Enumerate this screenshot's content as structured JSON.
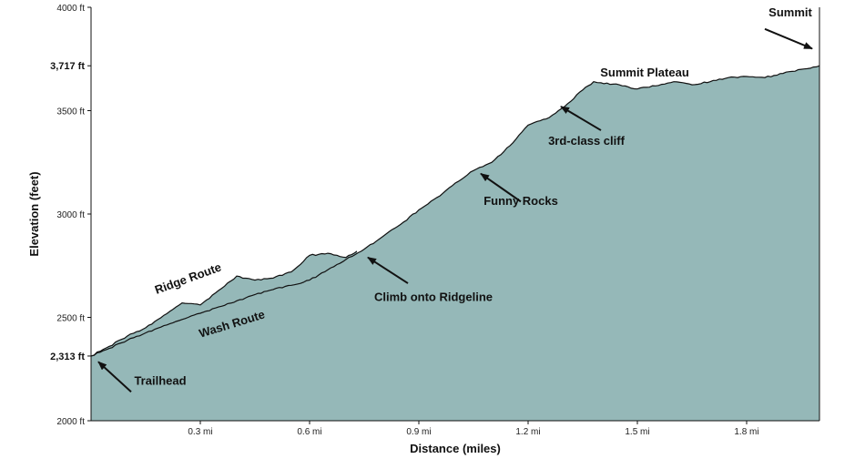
{
  "chart_data": {
    "type": "area",
    "xlabel": "Distance (miles)",
    "ylabel": "Elevation (feet)",
    "xlim": [
      0,
      2.0
    ],
    "ylim": [
      2000,
      4000
    ],
    "x_ticks": [
      {
        "value": 0.3,
        "label": "0.3 mi"
      },
      {
        "value": 0.6,
        "label": "0.6 mi"
      },
      {
        "value": 0.9,
        "label": "0.9 mi"
      },
      {
        "value": 1.2,
        "label": "1.2 mi"
      },
      {
        "value": 1.5,
        "label": "1.5 mi"
      },
      {
        "value": 1.8,
        "label": "1.8 mi"
      }
    ],
    "y_ticks": [
      {
        "value": 2000,
        "label": "2000 ft",
        "bold": false
      },
      {
        "value": 2313,
        "label": "2,313 ft",
        "bold": true
      },
      {
        "value": 2500,
        "label": "2500 ft",
        "bold": false
      },
      {
        "value": 3000,
        "label": "3000 ft",
        "bold": false
      },
      {
        "value": 3500,
        "label": "3500 ft",
        "bold": false
      },
      {
        "value": 3717,
        "label": "3,717 ft",
        "bold": true
      },
      {
        "value": 4000,
        "label": "4000 ft",
        "bold": false
      }
    ],
    "fill_color": "#95b8b8",
    "line_color": "#111111",
    "series": [
      {
        "x": [
          0,
          0.05,
          0.1,
          0.15,
          0.2,
          0.25,
          0.3,
          0.35,
          0.4,
          0.45,
          0.5,
          0.55,
          0.6,
          0.65,
          0.7,
          0.75,
          0.8,
          0.85,
          0.9,
          0.95,
          1.0,
          1.05,
          1.1,
          1.15,
          1.2,
          1.25,
          1.3,
          1.35,
          1.38,
          1.4,
          1.45,
          1.5,
          1.55,
          1.6,
          1.65,
          1.7,
          1.75,
          1.8,
          1.85,
          1.9,
          1.95,
          2.0
        ],
        "y": [
          2313,
          2350,
          2390,
          2425,
          2460,
          2490,
          2520,
          2550,
          2580,
          2610,
          2635,
          2655,
          2680,
          2730,
          2780,
          2830,
          2890,
          2950,
          3020,
          3080,
          3150,
          3210,
          3250,
          3330,
          3430,
          3460,
          3520,
          3600,
          3640,
          3635,
          3625,
          3605,
          3620,
          3640,
          3625,
          3640,
          3660,
          3665,
          3660,
          3680,
          3700,
          3717
        ]
      },
      {
        "x": [
          0,
          0.05,
          0.1,
          0.15,
          0.2,
          0.25,
          0.3,
          0.35,
          0.4,
          0.45,
          0.5,
          0.55,
          0.6,
          0.65,
          0.7,
          0.73
        ],
        "y": [
          2313,
          2360,
          2410,
          2450,
          2510,
          2570,
          2560,
          2630,
          2700,
          2680,
          2690,
          2720,
          2800,
          2810,
          2790,
          2820
        ]
      }
    ],
    "annotations": [
      {
        "text": "Summit",
        "x": 1.92,
        "y": 3955
      },
      {
        "text": "Summit Plateau",
        "x": 1.52,
        "y": 3665
      },
      {
        "text": "3rd-class cliff",
        "x": 1.36,
        "y": 3335
      },
      {
        "text": "Funny Rocks",
        "x": 1.18,
        "y": 3045
      },
      {
        "text": "Climb onto Ridgeline",
        "x": 0.94,
        "y": 2580
      },
      {
        "text": "Ridge Route",
        "x": 0.27,
        "y": 2670
      },
      {
        "text": "Wash Route",
        "x": 0.39,
        "y": 2450
      },
      {
        "text": "Trailhead",
        "x": 0.19,
        "y": 2175
      }
    ],
    "arrows": [
      {
        "x1": 1.98,
        "y1": 3800,
        "x2": 1.85,
        "y2": 3895
      },
      {
        "x1": 1.29,
        "y1": 3520,
        "x2": 1.4,
        "y2": 3405
      },
      {
        "x1": 1.07,
        "y1": 3195,
        "x2": 1.18,
        "y2": 3060
      },
      {
        "x1": 0.76,
        "y1": 2790,
        "x2": 0.87,
        "y2": 2665
      },
      {
        "x1": 0.02,
        "y1": 2285,
        "x2": 0.11,
        "y2": 2140
      }
    ]
  }
}
